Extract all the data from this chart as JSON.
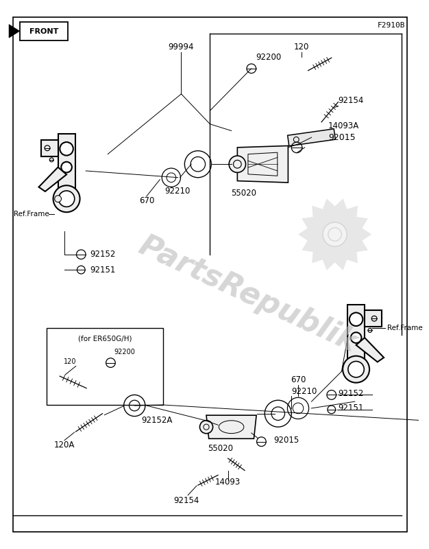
{
  "bg_color": "#ffffff",
  "line_color": "#000000",
  "text_color": "#000000",
  "watermark_color": "#bbbbbb",
  "fig_width": 6.26,
  "fig_height": 8.0,
  "title_text": "F2910B",
  "front_label": "FRONT",
  "watermark_text": "PartsRepublik",
  "box_label": "(for ER650G/H)"
}
